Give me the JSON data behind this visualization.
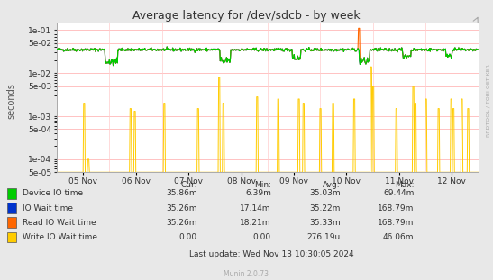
{
  "title": "Average latency for /dev/sdcb - by week",
  "ylabel": "seconds",
  "right_label": "RRDTOOL / TOBI OETIKER",
  "xticklabels": [
    "05 Nov",
    "06 Nov",
    "07 Nov",
    "08 Nov",
    "09 Nov",
    "10 Nov",
    "11 Nov",
    "12 Nov"
  ],
  "yticks": [
    5e-05,
    0.0001,
    0.0005,
    0.001,
    0.005,
    0.01,
    0.05,
    0.1
  ],
  "ylim": [
    5e-05,
    0.15
  ],
  "bg_color": "#e8e8e8",
  "plot_bg_color": "#ffffff",
  "grid_color": "#ffaaaa",
  "vgrid_color": "#ffcccc",
  "legend": [
    {
      "label": "Device IO time",
      "color": "#00cc00"
    },
    {
      "label": "IO Wait time",
      "color": "#0033cc"
    },
    {
      "label": "Read IO Wait time",
      "color": "#ff6600"
    },
    {
      "label": "Write IO Wait time",
      "color": "#ffcc00"
    }
  ],
  "legend_table": {
    "headers": [
      "Cur:",
      "Min:",
      "Avg:",
      "Max:"
    ],
    "rows": [
      [
        "35.86m",
        "6.39m",
        "35.03m",
        "69.44m"
      ],
      [
        "35.26m",
        "17.14m",
        "35.22m",
        "168.79m"
      ],
      [
        "35.26m",
        "18.21m",
        "35.33m",
        "168.79m"
      ],
      [
        "0.00",
        "0.00",
        "276.19u",
        "46.06m"
      ]
    ]
  },
  "footer": "Last update: Wed Nov 13 10:30:05 2024",
  "munin_version": "Munin 2.0.73",
  "num_points": 800,
  "seed": 42
}
